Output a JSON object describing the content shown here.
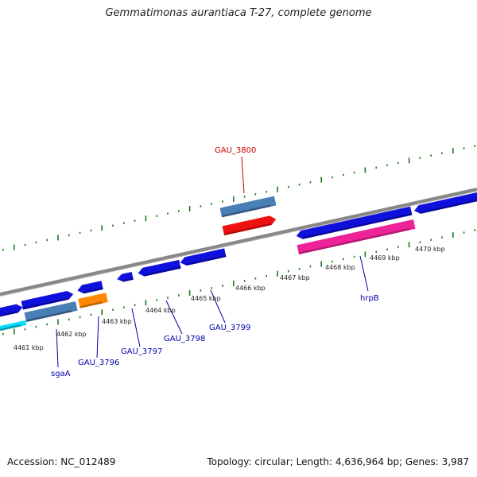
{
  "title": "Gemmatimonas aurantiaca T-27, complete genome",
  "footer": {
    "accession": "Accession: NC_012489",
    "summary": "Topology: circular; Length: 4,636,964 bp; Genes: 3,987"
  },
  "scale": {
    "ticks": [
      "4461 kbp",
      "4462 kbp",
      "4463 kbp",
      "4464 kbp",
      "4465 kbp",
      "4466 kbp",
      "4467 kbp",
      "4468 kbp",
      "4469 kbp",
      "4470 kbp"
    ]
  },
  "genes": [
    {
      "id": "gau3800",
      "label": "GAU_3800",
      "color": "#cc0000"
    },
    {
      "id": "hrpb",
      "label": "hrpB",
      "color": "#0000aa"
    },
    {
      "id": "gau3799",
      "label": "GAU_3799",
      "color": "#0000aa"
    },
    {
      "id": "gau3798",
      "label": "GAU_3798",
      "color": "#0000aa"
    },
    {
      "id": "gau3797",
      "label": "GAU_3797",
      "color": "#0000aa"
    },
    {
      "id": "gau3796",
      "label": "GAU_3796",
      "color": "#0000aa"
    },
    {
      "id": "sgaa",
      "label": "sgaA",
      "color": "#0000aa"
    }
  ],
  "colors": {
    "backbone": "#888888",
    "tick": "#1a7a1a",
    "cds_blue": "#1010dd",
    "cds_steel": "#4a7fb5",
    "cds_red": "#ee1111",
    "cds_pink": "#ee2299",
    "cds_orange": "#ff8800",
    "cds_cyan": "#00ddff"
  }
}
